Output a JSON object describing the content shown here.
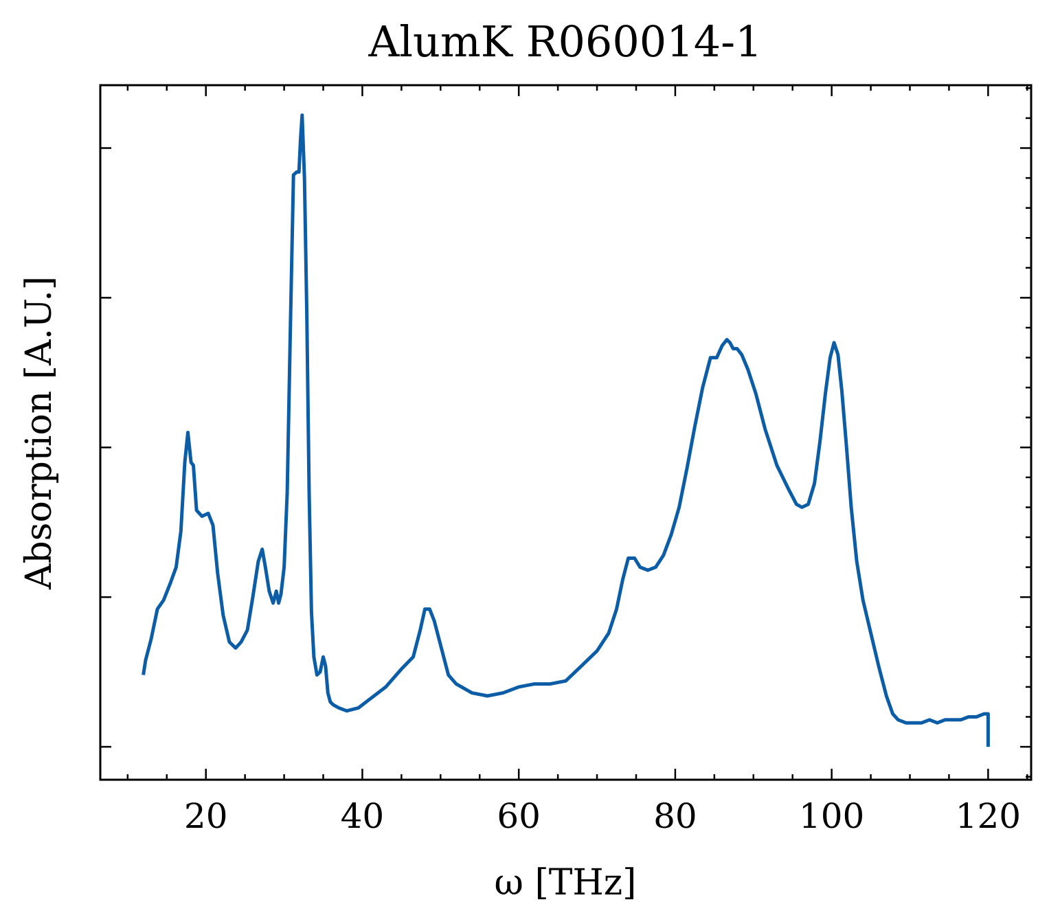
{
  "chart_data": {
    "type": "line",
    "title": "AlumK R060014-1",
    "xlabel": "ω [THz]",
    "ylabel": "Absorption [A.U.]",
    "xlim": [
      6.5,
      125.5
    ],
    "ylim": [
      -0.11,
      2.21
    ],
    "x_ticks": [
      20,
      40,
      60,
      80,
      100,
      120
    ],
    "x_tick_labels": [
      "20",
      "40",
      "60",
      "80",
      "100",
      "120"
    ],
    "y_ticks": [
      0,
      0.5,
      1.0,
      1.5,
      2.0
    ],
    "y_tick_labels": [],
    "grid": false,
    "legend": "none",
    "line_color": "#0C5DA5",
    "series": [
      {
        "x": [
          12.0,
          12.3,
          13.0,
          13.8,
          14.6,
          15.5,
          16.2,
          16.8,
          17.3,
          17.7,
          18.1,
          18.4,
          18.8,
          19.5,
          20.3,
          20.9,
          21.5,
          22.2,
          23.0,
          23.8,
          24.5,
          25.3,
          26.0,
          26.7,
          27.2,
          27.6,
          28.1,
          28.6,
          29.0,
          29.3,
          29.6,
          30.0,
          30.4,
          30.8,
          31.2,
          31.6,
          31.9,
          32.1,
          32.3,
          32.6,
          32.9,
          33.2,
          33.5,
          33.8,
          34.2,
          34.6,
          35.0,
          35.3,
          35.6,
          35.9,
          36.3,
          37.0,
          38.0,
          39.5,
          41.0,
          43.0,
          45.0,
          46.5,
          47.4,
          48.0,
          48.6,
          49.2,
          50.0,
          51.0,
          52.0,
          54.0,
          56.0,
          58.0,
          60.0,
          62.0,
          64.0,
          66.0,
          68.0,
          70.0,
          71.5,
          72.5,
          73.3,
          74.0,
          74.8,
          75.5,
          76.5,
          77.5,
          78.5,
          79.5,
          80.5,
          81.5,
          82.5,
          83.5,
          84.5,
          85.3,
          86.0,
          86.6,
          87.0,
          87.4,
          87.9,
          88.5,
          89.3,
          90.3,
          91.5,
          93.0,
          94.5,
          95.5,
          96.2,
          97.0,
          97.8,
          98.5,
          99.2,
          99.8,
          100.3,
          100.8,
          101.3,
          101.9,
          102.5,
          103.2,
          104.0,
          105.0,
          106.0,
          107.0,
          107.8,
          108.5,
          109.5,
          110.5,
          111.5,
          112.5,
          113.5,
          114.5,
          115.5,
          116.5,
          117.5,
          118.5,
          119.5,
          120.0,
          120.0
        ],
        "y": [
          0.24,
          0.29,
          0.36,
          0.46,
          0.49,
          0.55,
          0.6,
          0.72,
          0.95,
          1.05,
          0.95,
          0.94,
          0.79,
          0.77,
          0.78,
          0.74,
          0.58,
          0.44,
          0.35,
          0.33,
          0.35,
          0.39,
          0.5,
          0.62,
          0.66,
          0.6,
          0.52,
          0.48,
          0.52,
          0.48,
          0.51,
          0.6,
          0.85,
          1.4,
          1.91,
          1.92,
          1.92,
          2.03,
          2.11,
          1.9,
          1.45,
          0.85,
          0.45,
          0.3,
          0.24,
          0.25,
          0.3,
          0.27,
          0.18,
          0.15,
          0.14,
          0.13,
          0.12,
          0.13,
          0.16,
          0.2,
          0.26,
          0.3,
          0.39,
          0.46,
          0.46,
          0.42,
          0.34,
          0.24,
          0.21,
          0.18,
          0.17,
          0.18,
          0.2,
          0.21,
          0.21,
          0.22,
          0.27,
          0.32,
          0.38,
          0.46,
          0.56,
          0.63,
          0.63,
          0.6,
          0.59,
          0.6,
          0.64,
          0.71,
          0.8,
          0.93,
          1.07,
          1.2,
          1.3,
          1.3,
          1.34,
          1.36,
          1.35,
          1.33,
          1.33,
          1.31,
          1.26,
          1.18,
          1.06,
          0.94,
          0.86,
          0.81,
          0.8,
          0.81,
          0.88,
          1.02,
          1.18,
          1.3,
          1.35,
          1.31,
          1.19,
          1.0,
          0.8,
          0.62,
          0.49,
          0.38,
          0.27,
          0.17,
          0.11,
          0.09,
          0.08,
          0.08,
          0.08,
          0.09,
          0.08,
          0.09,
          0.09,
          0.09,
          0.1,
          0.1,
          0.11,
          0.11,
          0.0
        ]
      }
    ]
  }
}
